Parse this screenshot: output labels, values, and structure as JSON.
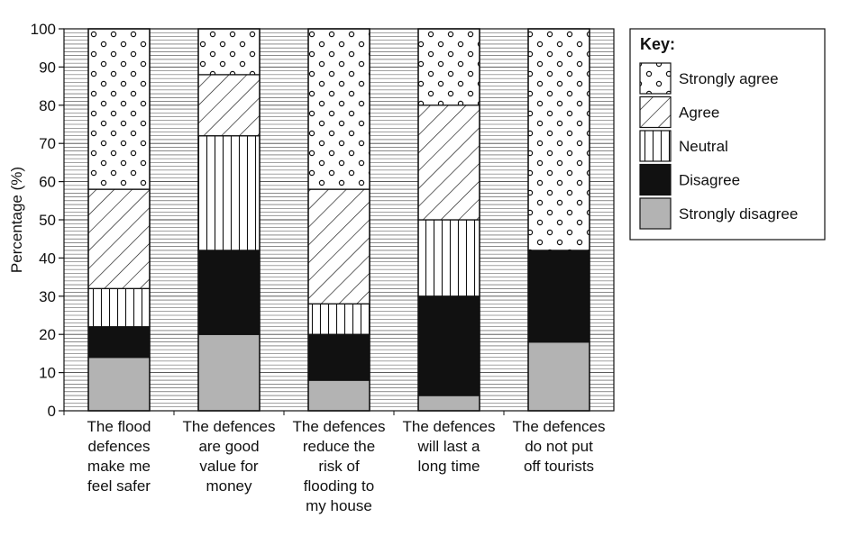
{
  "chart_data": {
    "type": "bar",
    "stacked": true,
    "ylabel": "Percentage (%)",
    "ylim": [
      0,
      100
    ],
    "yticks": [
      0,
      10,
      20,
      30,
      40,
      50,
      60,
      70,
      80,
      90,
      100
    ],
    "grid": true,
    "legend_title": "Key:",
    "legend_position": "right",
    "categories": [
      [
        "The flood",
        "defences",
        "make me",
        "feel safer"
      ],
      [
        "The defences",
        "are good",
        "value for",
        "money"
      ],
      [
        "The defences",
        "reduce the",
        "risk of",
        "flooding to",
        "my house"
      ],
      [
        "The defences",
        "will last a",
        "long time"
      ],
      [
        "The defences",
        "do not put",
        "off tourists"
      ]
    ],
    "series": [
      {
        "name": "Strongly disagree",
        "pattern": "grey",
        "color": "#b3b3b3",
        "values": [
          14,
          20,
          8,
          4,
          18
        ]
      },
      {
        "name": "Disagree",
        "pattern": "solid-black",
        "color": "#111111",
        "values": [
          8,
          22,
          12,
          26,
          24
        ]
      },
      {
        "name": "Neutral",
        "pattern": "vertical-lines",
        "color": "#ffffff",
        "values": [
          10,
          30,
          8,
          20,
          0
        ]
      },
      {
        "name": "Agree",
        "pattern": "diagonal-lines",
        "color": "#ffffff",
        "values": [
          26,
          16,
          30,
          30,
          0
        ]
      },
      {
        "name": "Strongly agree",
        "pattern": "dots",
        "color": "#ffffff",
        "values": [
          42,
          12,
          42,
          20,
          58
        ]
      }
    ],
    "legend_order": [
      "Strongly agree",
      "Agree",
      "Neutral",
      "Disagree",
      "Strongly disagree"
    ]
  }
}
